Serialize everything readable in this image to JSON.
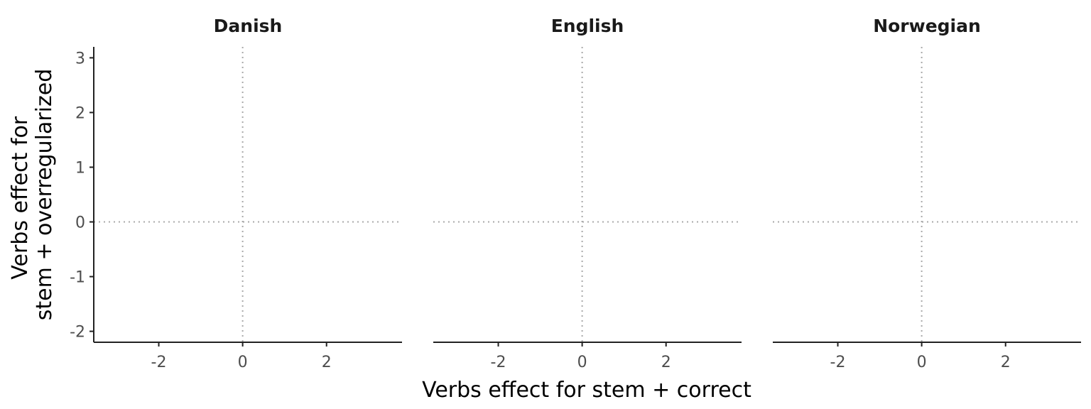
{
  "chart_data": {
    "type": "scatter",
    "facets": [
      {
        "title": "Danish",
        "points": []
      },
      {
        "title": "English",
        "points": []
      },
      {
        "title": "Norwegian",
        "points": []
      }
    ],
    "xlabel": "Verbs effect for stem + correct",
    "ylabel": [
      "Verbs effect for",
      "stem + overregularized"
    ],
    "xlim": [
      -3.55,
      3.8
    ],
    "ylim": [
      -2.2,
      3.2
    ],
    "x_ticks": [
      -2,
      0,
      2
    ],
    "x_tick_labels": [
      "-2",
      "0",
      "2"
    ],
    "y_ticks": [
      -2,
      -1,
      0,
      1,
      2,
      3
    ],
    "y_tick_labels": [
      "-2",
      "-1",
      "0",
      "1",
      "2",
      "3"
    ],
    "reference_lines": {
      "x": 0,
      "y": 0,
      "style": "dotted"
    },
    "grid": false,
    "colors": {
      "axis": "#222222",
      "reference": "#a8a8a8",
      "tick_text": "#4d4d4d"
    }
  }
}
